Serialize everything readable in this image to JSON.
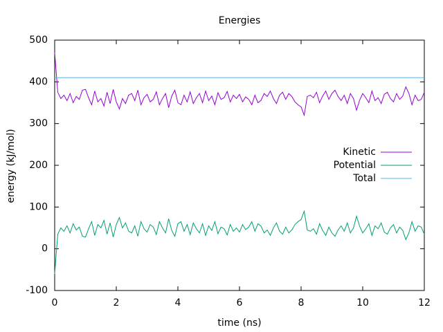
{
  "chart_data": {
    "type": "line",
    "title": "Energies",
    "xlabel": "time (ns)",
    "ylabel": "energy (kJ/mol)",
    "x": [
      0,
      0.1,
      0.2,
      0.3,
      0.4,
      0.5,
      0.6,
      0.7,
      0.8,
      0.9,
      1,
      1.1,
      1.2,
      1.3,
      1.4,
      1.5,
      1.6,
      1.7,
      1.8,
      1.9,
      2,
      2.1,
      2.2,
      2.3,
      2.4,
      2.5,
      2.6,
      2.7,
      2.8,
      2.9,
      3,
      3.1,
      3.2,
      3.3,
      3.4,
      3.5,
      3.6,
      3.7,
      3.8,
      3.9,
      4,
      4.1,
      4.2,
      4.3,
      4.4,
      4.5,
      4.6,
      4.7,
      4.8,
      4.9,
      5,
      5.1,
      5.2,
      5.3,
      5.4,
      5.5,
      5.6,
      5.7,
      5.8,
      5.9,
      6,
      6.1,
      6.2,
      6.3,
      6.4,
      6.5,
      6.6,
      6.7,
      6.8,
      6.9,
      7,
      7.1,
      7.2,
      7.3,
      7.4,
      7.5,
      7.6,
      7.7,
      7.8,
      7.9,
      8,
      8.1,
      8.2,
      8.3,
      8.4,
      8.5,
      8.6,
      8.7,
      8.8,
      8.9,
      9,
      9.1,
      9.2,
      9.3,
      9.4,
      9.5,
      9.6,
      9.7,
      9.8,
      9.9,
      10,
      10.1,
      10.2,
      10.3,
      10.4,
      10.5,
      10.6,
      10.7,
      10.8,
      10.9,
      11,
      11.1,
      11.2,
      11.3,
      11.4,
      11.5,
      11.6,
      11.7,
      11.8,
      11.9,
      12
    ],
    "series": [
      {
        "name": "Kinetic",
        "color": "#9400d3",
        "values": [
          470,
          375,
          360,
          368,
          355,
          372,
          350,
          365,
          358,
          380,
          382,
          362,
          345,
          378,
          352,
          360,
          342,
          375,
          348,
          382,
          352,
          335,
          360,
          348,
          368,
          372,
          355,
          380,
          345,
          362,
          370,
          352,
          358,
          376,
          345,
          360,
          372,
          338,
          366,
          380,
          350,
          345,
          368,
          352,
          376,
          348,
          362,
          372,
          350,
          378,
          355,
          366,
          345,
          374,
          358,
          362,
          377,
          352,
          368,
          360,
          370,
          352,
          364,
          358,
          345,
          368,
          350,
          356,
          372,
          365,
          378,
          360,
          348,
          368,
          375,
          358,
          372,
          365,
          352,
          345,
          340,
          320,
          365,
          368,
          362,
          375,
          350,
          366,
          378,
          358,
          372,
          380,
          365,
          355,
          368,
          348,
          372,
          360,
          332,
          356,
          372,
          362,
          350,
          378,
          355,
          362,
          348,
          370,
          375,
          360,
          352,
          372,
          358,
          366,
          388,
          372,
          345,
          368,
          355,
          358,
          375
        ]
      },
      {
        "name": "Potential",
        "color": "#009e73",
        "values": [
          -60,
          35,
          50,
          42,
          55,
          38,
          60,
          45,
          52,
          30,
          28,
          48,
          65,
          32,
          58,
          50,
          68,
          35,
          62,
          28,
          58,
          75,
          50,
          62,
          42,
          38,
          55,
          30,
          65,
          48,
          40,
          58,
          52,
          34,
          65,
          50,
          38,
          72,
          44,
          30,
          60,
          65,
          42,
          58,
          34,
          62,
          48,
          38,
          60,
          32,
          55,
          44,
          65,
          36,
          52,
          48,
          33,
          58,
          42,
          50,
          40,
          58,
          46,
          52,
          65,
          42,
          60,
          54,
          38,
          45,
          32,
          50,
          62,
          42,
          35,
          52,
          38,
          45,
          58,
          65,
          70,
          90,
          45,
          42,
          48,
          35,
          60,
          44,
          32,
          52,
          38,
          30,
          45,
          55,
          42,
          62,
          38,
          50,
          78,
          54,
          38,
          48,
          60,
          32,
          55,
          48,
          62,
          40,
          35,
          50,
          58,
          38,
          52,
          44,
          22,
          38,
          65,
          42,
          55,
          52,
          35
        ]
      },
      {
        "name": "Total",
        "color": "#56b4e9",
        "values": [
          410,
          410,
          410,
          410,
          410,
          410,
          410,
          410,
          410,
          410,
          410,
          410,
          410,
          410,
          410,
          410,
          410,
          410,
          410,
          410,
          410,
          410,
          410,
          410,
          410,
          410,
          410,
          410,
          410,
          410,
          410,
          410,
          410,
          410,
          410,
          410,
          410,
          410,
          410,
          410,
          410,
          410,
          410,
          410,
          410,
          410,
          410,
          410,
          410,
          410,
          410,
          410,
          410,
          410,
          410,
          410,
          410,
          410,
          410,
          410,
          410,
          410,
          410,
          410,
          410,
          410,
          410,
          410,
          410,
          410,
          410,
          410,
          410,
          410,
          410,
          410,
          410,
          410,
          410,
          410,
          410,
          410,
          410,
          410,
          410,
          410,
          410,
          410,
          410,
          410,
          410,
          410,
          410,
          410,
          410,
          410,
          410,
          410,
          410,
          410,
          410,
          410,
          410,
          410,
          410,
          410,
          410,
          410,
          410,
          410,
          410,
          410,
          410,
          410,
          410,
          410,
          410,
          410,
          410,
          410,
          410
        ]
      }
    ],
    "xlim": [
      0,
      12
    ],
    "xticks": [
      0,
      2,
      4,
      6,
      8,
      10,
      12
    ],
    "ylim": [
      -100,
      500
    ],
    "yticks": [
      -100,
      0,
      100,
      200,
      300,
      400,
      500
    ],
    "legend": "right"
  }
}
